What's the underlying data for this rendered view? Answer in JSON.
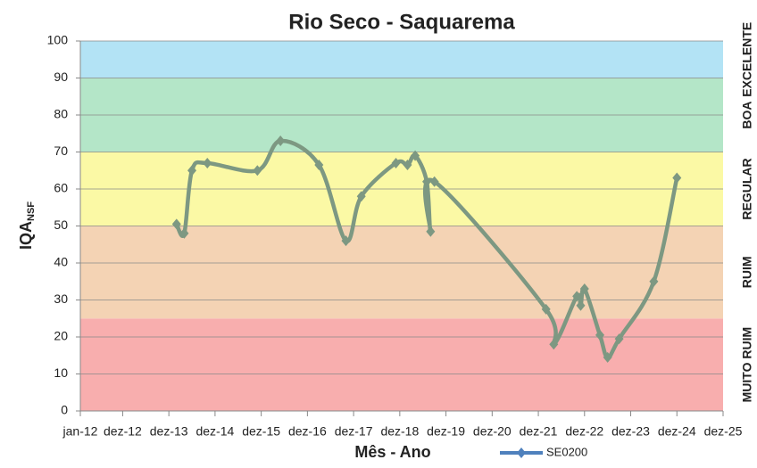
{
  "chart_data": {
    "type": "line",
    "title": "Rio Seco - Saquarema",
    "ylabel": "IQA",
    "ylabel_sub": "NSF",
    "xlabel": "Mês - Ano",
    "x": [
      "2014-02",
      "2014-04",
      "2014-06",
      "2014-10",
      "2015-11",
      "2016-05",
      "2017-03",
      "2017-10",
      "2018-02",
      "2018-11",
      "2019-02",
      "2019-04",
      "2019-07",
      "2019-08",
      "2019-09",
      "2022-02",
      "2022-04",
      "2022-10",
      "2022-11",
      "2022-12",
      "2023-04",
      "2023-06",
      "2023-09",
      "2024-06",
      "2024-12"
    ],
    "series": [
      {
        "name": "SE0200",
        "color": "#4f81bd",
        "line_color": "#7d9882",
        "values": [
          50.5,
          48,
          65,
          67,
          65,
          73,
          66.5,
          46,
          58,
          67,
          66.5,
          69,
          62,
          48.5,
          62,
          27.5,
          18,
          31,
          28.5,
          33,
          20.5,
          14.5,
          19.5,
          35,
          63
        ]
      }
    ],
    "xlim": [
      "2012-01",
      "2025-12"
    ],
    "xticks": [
      {
        "value": "2012-01",
        "label": "jan-12"
      },
      {
        "value": "2012-12",
        "label": "dez-12"
      },
      {
        "value": "2013-12",
        "label": "dez-13"
      },
      {
        "value": "2014-12",
        "label": "dez-14"
      },
      {
        "value": "2015-12",
        "label": "dez-15"
      },
      {
        "value": "2016-12",
        "label": "dez-16"
      },
      {
        "value": "2017-12",
        "label": "dez-17"
      },
      {
        "value": "2018-12",
        "label": "dez-18"
      },
      {
        "value": "2019-12",
        "label": "dez-19"
      },
      {
        "value": "2020-12",
        "label": "dez-20"
      },
      {
        "value": "2021-12",
        "label": "dez-21"
      },
      {
        "value": "2022-12",
        "label": "dez-22"
      },
      {
        "value": "2023-12",
        "label": "dez-23"
      },
      {
        "value": "2024-12",
        "label": "dez-24"
      },
      {
        "value": "2025-12",
        "label": "dez-25"
      }
    ],
    "ylim": [
      0,
      100
    ],
    "yticks": [
      0,
      10,
      20,
      30,
      40,
      50,
      60,
      70,
      80,
      90,
      100
    ],
    "bands": [
      {
        "label": "MUITO RUIM",
        "from": 0,
        "to": 25,
        "color": "#f8aeae"
      },
      {
        "label": "RUIM",
        "from": 25,
        "to": 50,
        "color": "#f4d3b4"
      },
      {
        "label": "REGULAR",
        "from": 50,
        "to": 70,
        "color": "#fbf9a5"
      },
      {
        "label": "BOA",
        "from": 70,
        "to": 90,
        "color": "#b4e6c8"
      },
      {
        "label": "EXCELENTE",
        "from": 90,
        "to": 100,
        "color": "#b3e3f5"
      }
    ],
    "legend": "bottom"
  }
}
